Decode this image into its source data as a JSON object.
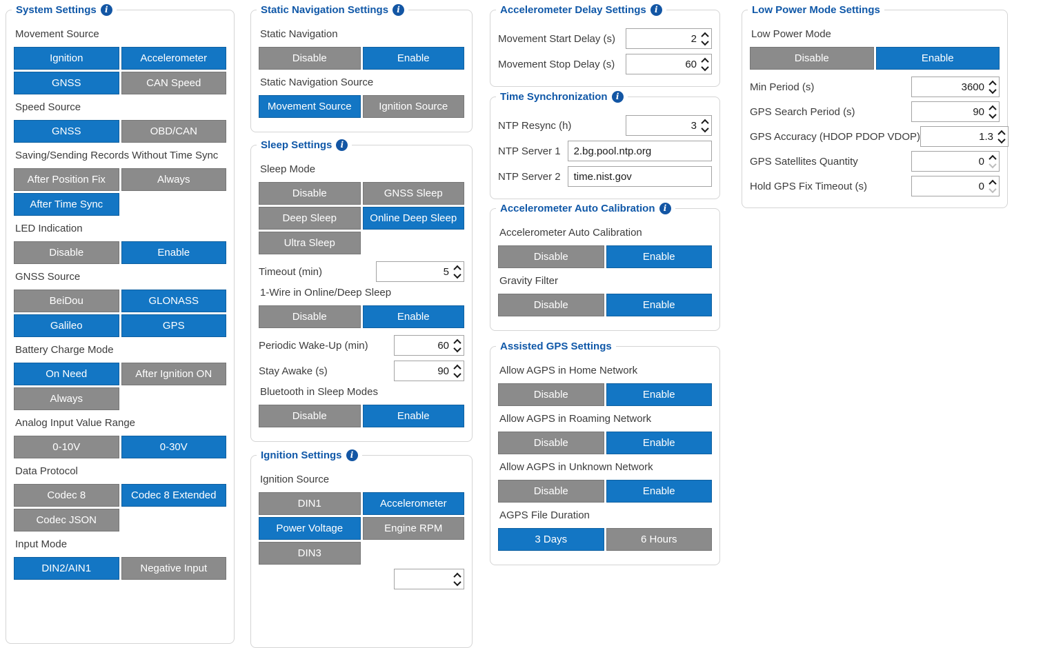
{
  "colors": {
    "accent_blue": "#1376c4",
    "inactive_gray": "#8b8b8b",
    "section_title_blue": "#1058a8",
    "info_icon_blue": "#1356a4"
  },
  "panels": [
    {
      "id": "system-settings",
      "title": "System Settings",
      "has_info_icon": true,
      "controls": [
        {
          "kind": "toggle-group",
          "label": "Movement Source",
          "options": [
            {
              "label": "Ignition",
              "selected": true
            },
            {
              "label": "Accelerometer",
              "selected": true
            },
            {
              "label": "GNSS",
              "selected": true
            },
            {
              "label": "CAN Speed",
              "selected": false
            }
          ]
        },
        {
          "kind": "toggle-group",
          "label": "Speed Source",
          "options": [
            {
              "label": "GNSS",
              "selected": true
            },
            {
              "label": "OBD/CAN",
              "selected": false
            }
          ]
        },
        {
          "kind": "toggle-group",
          "label": "Saving/Sending Records Without Time Sync",
          "options": [
            {
              "label": "After Position Fix",
              "selected": false
            },
            {
              "label": "Always",
              "selected": false
            },
            {
              "label": "After Time Sync",
              "selected": true
            }
          ]
        },
        {
          "kind": "toggle-group",
          "label": "LED Indication",
          "options": [
            {
              "label": "Disable",
              "selected": false
            },
            {
              "label": "Enable",
              "selected": true
            }
          ]
        },
        {
          "kind": "toggle-group",
          "label": "GNSS Source",
          "options": [
            {
              "label": "BeiDou",
              "selected": false
            },
            {
              "label": "GLONASS",
              "selected": true
            },
            {
              "label": "Galileo",
              "selected": true
            },
            {
              "label": "GPS",
              "selected": true
            }
          ]
        },
        {
          "kind": "toggle-group",
          "label": "Battery Charge Mode",
          "options": [
            {
              "label": "On Need",
              "selected": true
            },
            {
              "label": "After Ignition ON",
              "selected": false
            },
            {
              "label": "Always",
              "selected": false
            }
          ]
        },
        {
          "kind": "toggle-group",
          "label": "Analog Input Value Range",
          "options": [
            {
              "label": "0-10V",
              "selected": false
            },
            {
              "label": "0-30V",
              "selected": true
            }
          ]
        },
        {
          "kind": "toggle-group",
          "label": "Data Protocol",
          "options": [
            {
              "label": "Codec 8",
              "selected": false
            },
            {
              "label": "Codec 8 Extended",
              "selected": true
            },
            {
              "label": "Codec JSON",
              "selected": false
            }
          ]
        },
        {
          "kind": "toggle-group",
          "label": "Input Mode",
          "options": [
            {
              "label": "DIN2/AIN1",
              "selected": true
            },
            {
              "label": "Negative Input",
              "selected": false
            }
          ]
        }
      ]
    },
    {
      "id": "static-navigation-settings",
      "title": "Static Navigation Settings",
      "has_info_icon": true,
      "controls": [
        {
          "kind": "toggle-group",
          "label": "Static Navigation",
          "options": [
            {
              "label": "Disable",
              "selected": false
            },
            {
              "label": "Enable",
              "selected": true
            }
          ]
        },
        {
          "kind": "toggle-group",
          "label": "Static Navigation Source",
          "options": [
            {
              "label": "Movement Source",
              "selected": true
            },
            {
              "label": "Ignition Source",
              "selected": false
            }
          ]
        }
      ]
    },
    {
      "id": "sleep-settings",
      "title": "Sleep Settings",
      "has_info_icon": true,
      "controls": [
        {
          "kind": "toggle-group",
          "label": "Sleep Mode",
          "options": [
            {
              "label": "Disable",
              "selected": false
            },
            {
              "label": "GNSS Sleep",
              "selected": false
            },
            {
              "label": "Deep Sleep",
              "selected": false
            },
            {
              "label": "Online Deep Sleep",
              "selected": true
            },
            {
              "label": "Ultra Sleep",
              "selected": false
            }
          ]
        },
        {
          "kind": "number-field",
          "label": "Timeout (min)",
          "value": "5"
        },
        {
          "kind": "toggle-group",
          "label": "1-Wire in Online/Deep Sleep",
          "options": [
            {
              "label": "Disable",
              "selected": false
            },
            {
              "label": "Enable",
              "selected": true
            }
          ]
        },
        {
          "kind": "number-field",
          "label": "Periodic Wake-Up (min)",
          "value": "60"
        },
        {
          "kind": "number-field",
          "label": "Stay Awake (s)",
          "value": "90"
        },
        {
          "kind": "toggle-group",
          "label": "Bluetooth in Sleep Modes",
          "options": [
            {
              "label": "Disable",
              "selected": false
            },
            {
              "label": "Enable",
              "selected": true
            }
          ]
        }
      ]
    },
    {
      "id": "ignition-settings",
      "title": "Ignition Settings",
      "has_info_icon": true,
      "controls": [
        {
          "kind": "toggle-group",
          "label": "Ignition Source",
          "options": [
            {
              "label": "DIN1",
              "selected": false
            },
            {
              "label": "Accelerometer",
              "selected": true
            },
            {
              "label": "Power Voltage",
              "selected": true
            },
            {
              "label": "Engine RPM",
              "selected": false
            },
            {
              "label": "DIN3",
              "selected": false
            }
          ]
        },
        {
          "kind": "clipped-field",
          "label": "",
          "value": ""
        }
      ]
    },
    {
      "id": "accelerometer-delay-settings",
      "title": "Accelerometer Delay Settings",
      "has_info_icon": true,
      "controls": [
        {
          "kind": "number-field",
          "label": "Movement Start Delay (s)",
          "value": "2"
        },
        {
          "kind": "number-field",
          "label": "Movement Stop Delay (s)",
          "value": "60"
        }
      ]
    },
    {
      "id": "time-synchronization",
      "title": "Time Synchronization",
      "has_info_icon": true,
      "controls": [
        {
          "kind": "number-field",
          "label": "NTP Resync (h)",
          "value": "3"
        },
        {
          "kind": "text-field",
          "label": "NTP Server 1",
          "value": "2.bg.pool.ntp.org"
        },
        {
          "kind": "text-field",
          "label": "NTP Server 2",
          "value": "time.nist.gov"
        }
      ]
    },
    {
      "id": "accelerometer-auto-calibration",
      "title": "Accelerometer Auto Calibration",
      "has_info_icon": true,
      "controls": [
        {
          "kind": "toggle-group",
          "label": "Accelerometer Auto Calibration",
          "options": [
            {
              "label": "Disable",
              "selected": false
            },
            {
              "label": "Enable",
              "selected": true
            }
          ]
        },
        {
          "kind": "toggle-group",
          "label": "Gravity Filter",
          "options": [
            {
              "label": "Disable",
              "selected": false
            },
            {
              "label": "Enable",
              "selected": true
            }
          ]
        }
      ]
    },
    {
      "id": "assisted-gps-settings",
      "title": "Assisted GPS Settings",
      "has_info_icon": false,
      "controls": [
        {
          "kind": "toggle-group",
          "label": "Allow AGPS in Home Network",
          "options": [
            {
              "label": "Disable",
              "selected": false
            },
            {
              "label": "Enable",
              "selected": true
            }
          ]
        },
        {
          "kind": "toggle-group",
          "label": "Allow AGPS in Roaming Network",
          "options": [
            {
              "label": "Disable",
              "selected": false
            },
            {
              "label": "Enable",
              "selected": true
            }
          ]
        },
        {
          "kind": "toggle-group",
          "label": "Allow AGPS in Unknown Network",
          "options": [
            {
              "label": "Disable",
              "selected": false
            },
            {
              "label": "Enable",
              "selected": true
            }
          ]
        },
        {
          "kind": "toggle-group",
          "label": "AGPS File Duration",
          "options": [
            {
              "label": "3 Days",
              "selected": true
            },
            {
              "label": "6 Hours",
              "selected": false
            }
          ]
        }
      ]
    },
    {
      "id": "low-power-mode-settings",
      "title": "Low Power Mode Settings",
      "has_info_icon": false,
      "controls": [
        {
          "kind": "toggle-group",
          "label": "Low Power Mode",
          "options": [
            {
              "label": "Disable",
              "selected": false
            },
            {
              "label": "Enable",
              "selected": true
            }
          ]
        },
        {
          "kind": "number-field",
          "label": "Min Period (s)",
          "value": "3600"
        },
        {
          "kind": "number-field",
          "label": "GPS Search Period (s)",
          "value": "90"
        },
        {
          "kind": "number-field",
          "label": "GPS Accuracy (HDOP PDOP VDOP)",
          "value": "1.3"
        },
        {
          "kind": "number-field",
          "label": "GPS Satellites Quantity",
          "value": "0",
          "down_disabled": true
        },
        {
          "kind": "number-field",
          "label": "Hold GPS Fix Timeout (s)",
          "value": "0",
          "down_disabled": true
        }
      ]
    }
  ]
}
